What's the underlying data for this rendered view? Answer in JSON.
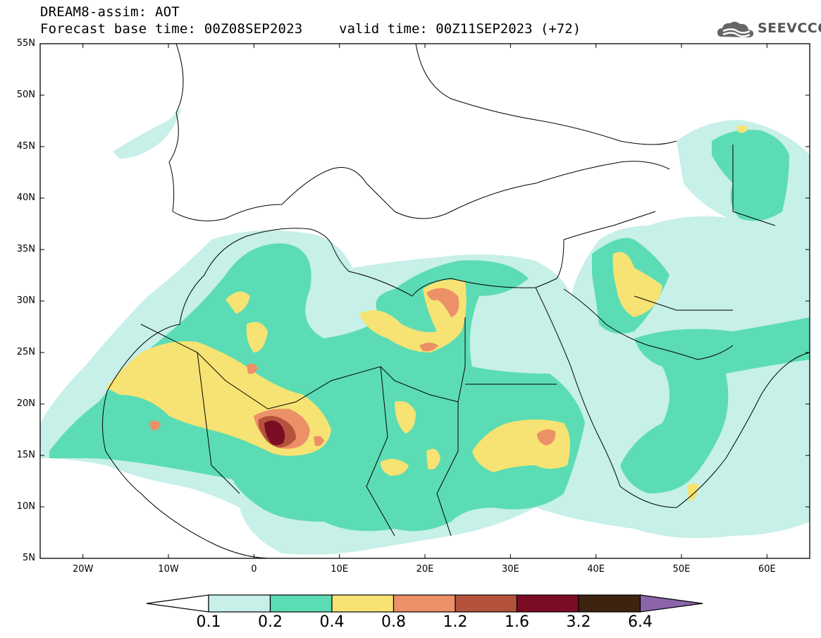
{
  "header": {
    "title": "DREAM8-assim: AOT",
    "base_time": "Forecast base time: 00Z08SEP2023",
    "valid_time": "valid time: 00Z11SEP2023 (+72)",
    "logo_text": "SEEVCCC"
  },
  "map": {
    "lon_range": [
      -25,
      65
    ],
    "lat_range": [
      5,
      55
    ],
    "lat_ticks": [
      "5N",
      "10N",
      "15N",
      "20N",
      "25N",
      "30N",
      "35N",
      "40N",
      "45N",
      "50N",
      "55N"
    ],
    "lon_ticks": [
      "20W",
      "10W",
      "0",
      "10E",
      "20E",
      "30E",
      "40E",
      "50E",
      "60E"
    ],
    "field": "Aerosol optical thickness (dust)"
  },
  "colorbar": {
    "labels": [
      "0.1",
      "0.2",
      "0.4",
      "0.8",
      "1.2",
      "1.6",
      "3.2",
      "6.4"
    ],
    "colors": [
      "#ffffff",
      "#c6f0e8",
      "#5cdcb4",
      "#f7e373",
      "#ec9068",
      "#b4523c",
      "#7c0c24",
      "#3c2410",
      "#8c64a8"
    ]
  }
}
